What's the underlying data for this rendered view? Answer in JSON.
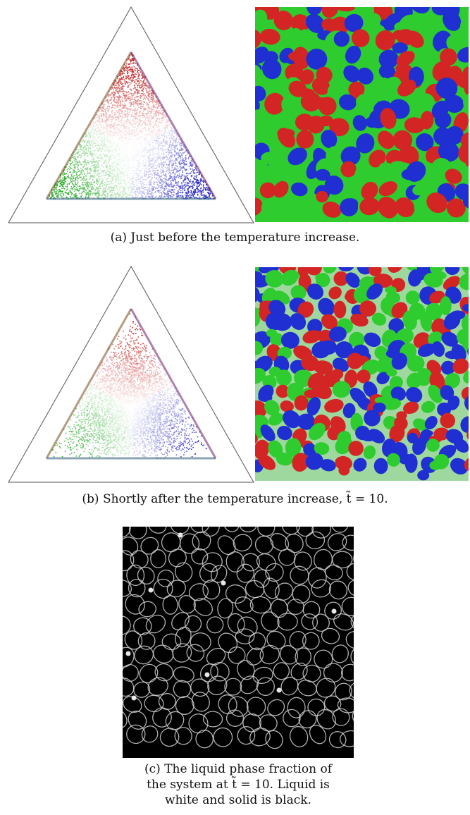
{
  "figure": {
    "panels": [
      {
        "id": "a",
        "caption": "(a) Just before the temperature increase."
      },
      {
        "id": "b",
        "caption": "(b) Shortly after the temperature increase, t̃ = 10."
      },
      {
        "id": "c",
        "caption_lines": [
          "(c) The liquid phase fraction of",
          "the system at t̃ = 10. Liquid is",
          "white and solid is black."
        ]
      }
    ],
    "colors": {
      "phase_red": "#d42525",
      "phase_green": "#2ecc2e",
      "phase_blue": "#1f2fd2",
      "background": "#ffffff",
      "liquid": "#ffffff",
      "solid": "#000000"
    }
  }
}
